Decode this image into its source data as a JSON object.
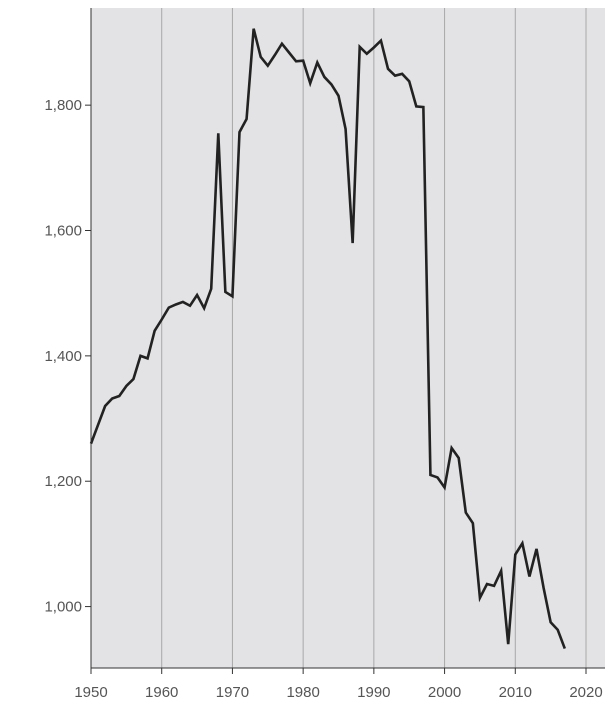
{
  "colors": {
    "background": "#ffffff",
    "plot_background": "#e3e3e5",
    "grid": "#a8a8a8",
    "axis": "#333333",
    "line": "#222222",
    "tick_label": "#555555"
  },
  "chart_data": {
    "type": "line",
    "title": "",
    "xlabel": "",
    "ylabel": "",
    "xlim": [
      1950,
      2020
    ],
    "ylim": [
      902,
      1955
    ],
    "grid": "vertical",
    "legend": "none",
    "x_ticks": [
      1950,
      1960,
      1970,
      1980,
      1990,
      2000,
      2010,
      2020
    ],
    "x_tick_labels": [
      "1950",
      "1960",
      "1970",
      "1980",
      "1990",
      "2000",
      "2010",
      "2020"
    ],
    "y_ticks": [
      1000,
      1200,
      1400,
      1600,
      1800
    ],
    "y_tick_labels": [
      "1,000",
      "1,200",
      "1,400",
      "1,600",
      "1,800"
    ],
    "series": [
      {
        "x": [
          1950,
          1951,
          1952,
          1953,
          1954,
          1955,
          1956,
          1957,
          1958,
          1959,
          1960,
          1961,
          1962,
          1963,
          1964,
          1965,
          1966,
          1967,
          1968,
          1969,
          1970,
          1971,
          1972,
          1973,
          1974,
          1975,
          1976,
          1977,
          1978,
          1979,
          1980,
          1981,
          1982,
          1983,
          1984,
          1985,
          1986,
          1987,
          1988,
          1989,
          1990,
          1991,
          1992,
          1993,
          1994,
          1995,
          1996,
          1997,
          1998,
          1999,
          2000,
          2001,
          2002,
          2003,
          2004,
          2005,
          2006,
          2007,
          2008,
          2009,
          2010,
          2011,
          2012,
          2013,
          2014,
          2015,
          2016,
          2017
        ],
        "values": [
          1260,
          1290,
          1320,
          1332,
          1336,
          1352,
          1363,
          1400,
          1396,
          1440,
          1458,
          1477,
          1482,
          1486,
          1480,
          1497,
          1476,
          1507,
          1755,
          1502,
          1495,
          1757,
          1778,
          1922,
          1877,
          1863,
          1880,
          1898,
          1884,
          1870,
          1871,
          1835,
          1868,
          1845,
          1833,
          1815,
          1762,
          1580,
          1893,
          1882,
          1892,
          1903,
          1858,
          1847,
          1850,
          1838,
          1798,
          1797,
          1210,
          1206,
          1190,
          1253,
          1237,
          1150,
          1133,
          1014,
          1036,
          1033,
          1057,
          940,
          1083,
          1101,
          1048,
          1092,
          1030,
          975,
          963,
          933
        ]
      }
    ]
  }
}
